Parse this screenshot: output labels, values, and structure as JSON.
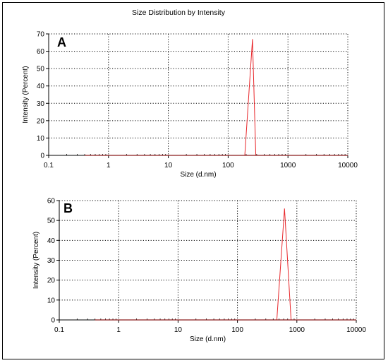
{
  "figure": {
    "title": "Size Distribution by Intensity"
  },
  "chart_data": [
    {
      "type": "line",
      "panel_label": "A",
      "title": "",
      "xlabel": "Size (d.nm)",
      "ylabel": "Intensity (Percent)",
      "x_scale": "log",
      "xlim": [
        0.1,
        10000
      ],
      "ylim": [
        0,
        70
      ],
      "x_ticks": [
        "0.1",
        "1",
        "10",
        "100",
        "1000",
        "10000"
      ],
      "y_ticks": [
        "0",
        "10",
        "20",
        "30",
        "40",
        "50",
        "60",
        "70"
      ],
      "grid": true,
      "series": [
        {
          "color": "#e8262a",
          "x": [
            0.4,
            190,
            255,
            290,
            10000
          ],
          "y": [
            0,
            0,
            67,
            0,
            0
          ]
        }
      ]
    },
    {
      "type": "line",
      "panel_label": "B",
      "title": "",
      "xlabel": "Size (d.nm)",
      "ylabel": "Intensity (Percent)",
      "x_scale": "log",
      "xlim": [
        0.1,
        10000
      ],
      "ylim": [
        0,
        60
      ],
      "x_ticks": [
        "0.1",
        "1",
        "10",
        "100",
        "1000",
        "10000"
      ],
      "y_ticks": [
        "0",
        "10",
        "20",
        "30",
        "40",
        "50",
        "60"
      ],
      "grid": true,
      "series": [
        {
          "color": "#e8262a",
          "x": [
            0.4,
            460,
            620,
            800,
            10000
          ],
          "y": [
            0,
            0,
            56,
            0,
            0
          ]
        }
      ]
    }
  ]
}
